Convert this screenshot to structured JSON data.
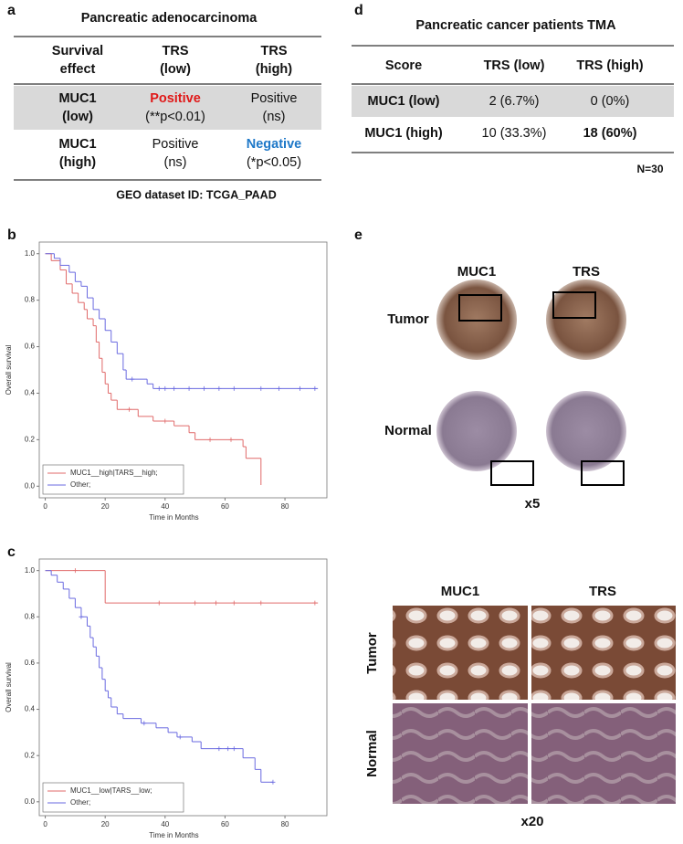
{
  "panels": {
    "a": {
      "label": "a",
      "title": "Pancreatic adenocarcinoma",
      "table": {
        "header": [
          [
            "Survival",
            "effect"
          ],
          [
            "TRS",
            "(low)"
          ],
          [
            "TRS",
            "(high)"
          ]
        ],
        "rows": [
          [
            [
              "MUC1",
              "(low)"
            ],
            [
              "Positive",
              "(**p<0.01)"
            ],
            [
              "Positive",
              "(ns)"
            ]
          ],
          [
            [
              "MUC1",
              "(high)"
            ],
            [
              "Positive",
              "(ns)"
            ],
            [
              "Negative",
              "(*p<0.05)"
            ]
          ]
        ]
      },
      "footnote": "GEO dataset ID: TCGA_PAAD"
    },
    "d": {
      "label": "d",
      "title": "Pancreatic cancer patients TMA",
      "table": {
        "header": [
          "Score",
          "TRS (low)",
          "TRS (high)"
        ],
        "rows": [
          [
            "MUC1 (low)",
            "2 (6.7%)",
            "0 (0%)"
          ],
          [
            "MUC1 (high)",
            "10 (33.3%)",
            "18 (60%)"
          ]
        ]
      },
      "footnote": "N=30"
    },
    "b": {
      "label": "b"
    },
    "c": {
      "label": "c"
    },
    "e": {
      "label": "e",
      "low_mag": {
        "columns": [
          "MUC1",
          "TRS"
        ],
        "rows": [
          "Tumor",
          "Normal"
        ],
        "magnification": "x5"
      },
      "high_mag": {
        "columns": [
          "MUC1",
          "TRS"
        ],
        "rows": [
          "Tumor",
          "Normal"
        ],
        "magnification": "x20"
      }
    }
  },
  "chart_data": [
    {
      "type": "line",
      "drawstyle": "steps-post",
      "x_label": "Time in Months",
      "y_label": "Overall survival",
      "xlim": [
        -2,
        94
      ],
      "ylim": [
        -0.05,
        1.05
      ],
      "xticks": [
        0,
        20,
        40,
        60,
        80
      ],
      "yticks": [
        {
          "value": 0,
          "label": "0.0"
        },
        0.2,
        0.4,
        0.6,
        0.8,
        {
          "value": 1,
          "label": "1.0"
        }
      ],
      "legend": "lower left",
      "series": [
        {
          "name": "MUC1__high|TARS__high;",
          "color": "#e06a6a",
          "x": [
            0,
            2,
            5,
            7,
            9,
            11,
            13,
            14,
            16,
            17,
            18,
            19,
            20,
            21,
            22,
            24,
            31,
            36,
            43,
            48,
            50,
            66,
            67,
            72
          ],
          "values": [
            1,
            0.97,
            0.93,
            0.87,
            0.83,
            0.79,
            0.76,
            0.72,
            0.69,
            0.62,
            0.55,
            0.49,
            0.44,
            0.4,
            0.37,
            0.33,
            0.3,
            0.28,
            0.26,
            0.23,
            0.2,
            0.17,
            0.12,
            0.005
          ],
          "censored_x": [
            28,
            40,
            55,
            62
          ],
          "censored_values": [
            0.33,
            0.28,
            0.2,
            0.2
          ]
        },
        {
          "name": "Other;",
          "color": "#6a6ae0",
          "x": [
            0,
            3,
            5,
            8,
            10,
            12,
            14,
            16,
            18,
            20,
            22,
            24,
            26,
            27,
            34,
            36,
            91
          ],
          "values": [
            1,
            0.98,
            0.95,
            0.92,
            0.88,
            0.86,
            0.81,
            0.76,
            0.72,
            0.67,
            0.62,
            0.57,
            0.5,
            0.46,
            0.44,
            0.42,
            0.42
          ],
          "censored_x": [
            29,
            38,
            40,
            43,
            48,
            53,
            58,
            63,
            72,
            78,
            85,
            90
          ],
          "censored_values": [
            0.46,
            0.42,
            0.42,
            0.42,
            0.42,
            0.42,
            0.42,
            0.42,
            0.42,
            0.42,
            0.42,
            0.42
          ]
        }
      ]
    },
    {
      "type": "line",
      "drawstyle": "steps-post",
      "x_label": "Time in Months",
      "y_label": "Overall survival",
      "xlim": [
        -2,
        94
      ],
      "ylim": [
        -0.06,
        1.05
      ],
      "xticks": [
        0,
        20,
        40,
        60,
        80
      ],
      "yticks": [
        {
          "value": 0,
          "label": "0.0"
        },
        0.2,
        0.4,
        0.6,
        0.8,
        {
          "value": 1,
          "label": "1.0"
        }
      ],
      "legend": "lower left",
      "series": [
        {
          "name": "MUC1__low|TARS__low;",
          "color": "#e06a6a",
          "x": [
            0,
            20,
            91
          ],
          "values": [
            1,
            0.86,
            0.86
          ],
          "censored_x": [
            10,
            38,
            50,
            57,
            63,
            72,
            90
          ],
          "censored_values": [
            1,
            0.86,
            0.86,
            0.86,
            0.86,
            0.86,
            0.86
          ]
        },
        {
          "name": "Other;",
          "color": "#6a6ae0",
          "x": [
            0,
            2,
            4,
            6,
            8,
            10,
            12,
            14,
            15,
            16,
            17,
            18,
            19,
            20,
            21,
            22,
            24,
            26,
            32,
            37,
            41,
            44,
            49,
            52,
            66,
            70,
            72,
            76
          ],
          "values": [
            1,
            0.98,
            0.95,
            0.92,
            0.88,
            0.84,
            0.8,
            0.76,
            0.71,
            0.67,
            0.63,
            0.58,
            0.53,
            0.48,
            0.45,
            0.41,
            0.38,
            0.36,
            0.34,
            0.32,
            0.3,
            0.28,
            0.26,
            0.23,
            0.19,
            0.14,
            0.085,
            0.085
          ],
          "censored_x": [
            12,
            33,
            45,
            58,
            61,
            63,
            76
          ],
          "censored_values": [
            0.8,
            0.34,
            0.28,
            0.23,
            0.23,
            0.23,
            0.085
          ]
        }
      ]
    }
  ]
}
